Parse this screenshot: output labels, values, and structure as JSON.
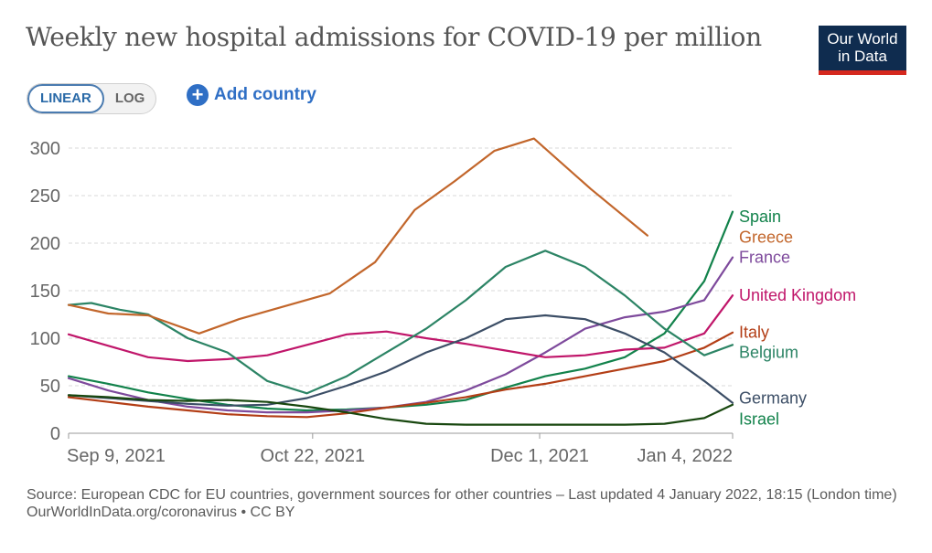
{
  "title": "Weekly new hospital admissions for COVID-19 per million",
  "logo": {
    "line1": "Our World",
    "line2": "in Data"
  },
  "controls": {
    "linear_label": "LINEAR",
    "log_label": "LOG",
    "add_country_label": "Add country"
  },
  "footer": {
    "source": "Source: European CDC for EU countries, government sources for other countries – Last updated 4 January 2022, 18:15 (London time)",
    "credit": "OurWorldInData.org/coronavirus • CC BY"
  },
  "chart_data": {
    "type": "line",
    "title": "Weekly new hospital admissions for COVID-19 per million",
    "xlabel": "",
    "ylabel": "",
    "x_tick_labels": [
      "Sep 9, 2021",
      "Oct 22, 2021",
      "Dec 1, 2021",
      "Jan 4, 2022"
    ],
    "y_ticks": [
      0,
      50,
      100,
      150,
      200,
      250,
      300
    ],
    "ylim": [
      0,
      300
    ],
    "xlim": [
      "2021-09-09",
      "2022-01-04"
    ],
    "grid": true,
    "legend_placement": "right",
    "scale": "linear",
    "series": [
      {
        "name": "Spain",
        "color": "#12824b",
        "points": [
          [
            "2021-09-09",
            60
          ],
          [
            "2021-09-16",
            52
          ],
          [
            "2021-09-23",
            43
          ],
          [
            "2021-09-30",
            36
          ],
          [
            "2021-10-07",
            30
          ],
          [
            "2021-10-14",
            26
          ],
          [
            "2021-10-21",
            24
          ],
          [
            "2021-10-28",
            25
          ],
          [
            "2021-11-04",
            27
          ],
          [
            "2021-11-11",
            30
          ],
          [
            "2021-11-18",
            35
          ],
          [
            "2021-11-25",
            48
          ],
          [
            "2021-12-02",
            60
          ],
          [
            "2021-12-09",
            68
          ],
          [
            "2021-12-16",
            80
          ],
          [
            "2021-12-23",
            105
          ],
          [
            "2021-12-30",
            160
          ],
          [
            "2022-01-04",
            233
          ]
        ]
      },
      {
        "name": "Greece",
        "color": "#c15065",
        "points": []
      },
      {
        "name": "France",
        "color": "#7e4a9c",
        "points": [
          [
            "2021-09-09",
            58
          ],
          [
            "2021-09-16",
            45
          ],
          [
            "2021-09-23",
            35
          ],
          [
            "2021-09-30",
            28
          ],
          [
            "2021-10-07",
            24
          ],
          [
            "2021-10-14",
            22
          ],
          [
            "2021-10-21",
            22
          ],
          [
            "2021-10-28",
            24
          ],
          [
            "2021-11-04",
            27
          ],
          [
            "2021-11-11",
            33
          ],
          [
            "2021-11-18",
            45
          ],
          [
            "2021-11-25",
            62
          ],
          [
            "2021-12-02",
            85
          ],
          [
            "2021-12-09",
            110
          ],
          [
            "2021-12-16",
            122
          ],
          [
            "2021-12-23",
            128
          ],
          [
            "2021-12-30",
            140
          ],
          [
            "2022-01-04",
            185
          ]
        ]
      },
      {
        "name": "United Kingdom",
        "color": "#c0166a",
        "points": [
          [
            "2021-09-09",
            104
          ],
          [
            "2021-09-16",
            92
          ],
          [
            "2021-09-23",
            80
          ],
          [
            "2021-09-30",
            76
          ],
          [
            "2021-10-07",
            78
          ],
          [
            "2021-10-14",
            82
          ],
          [
            "2021-10-21",
            93
          ],
          [
            "2021-10-28",
            104
          ],
          [
            "2021-11-04",
            107
          ],
          [
            "2021-11-11",
            100
          ],
          [
            "2021-11-18",
            94
          ],
          [
            "2021-11-25",
            87
          ],
          [
            "2021-12-02",
            80
          ],
          [
            "2021-12-09",
            82
          ],
          [
            "2021-12-16",
            88
          ],
          [
            "2021-12-23",
            90
          ],
          [
            "2021-12-30",
            105
          ],
          [
            "2022-01-04",
            145
          ]
        ]
      },
      {
        "name": "Italy",
        "color": "#b33e16",
        "points": [
          [
            "2021-09-09",
            38
          ],
          [
            "2021-09-16",
            33
          ],
          [
            "2021-09-23",
            28
          ],
          [
            "2021-09-30",
            24
          ],
          [
            "2021-10-07",
            20
          ],
          [
            "2021-10-14",
            18
          ],
          [
            "2021-10-21",
            17
          ],
          [
            "2021-10-28",
            21
          ],
          [
            "2021-11-04",
            27
          ],
          [
            "2021-11-11",
            32
          ],
          [
            "2021-11-18",
            38
          ],
          [
            "2021-11-25",
            46
          ],
          [
            "2021-12-02",
            52
          ],
          [
            "2021-12-09",
            60
          ],
          [
            "2021-12-16",
            68
          ],
          [
            "2021-12-23",
            76
          ],
          [
            "2021-12-30",
            90
          ],
          [
            "2022-01-04",
            106
          ]
        ]
      },
      {
        "name": "Belgium",
        "color": "#2c8465",
        "points": [
          [
            "2021-09-09",
            135
          ],
          [
            "2021-09-13",
            137
          ],
          [
            "2021-09-18",
            130
          ],
          [
            "2021-09-23",
            125
          ],
          [
            "2021-09-30",
            100
          ],
          [
            "2021-10-07",
            85
          ],
          [
            "2021-10-14",
            55
          ],
          [
            "2021-10-21",
            42
          ],
          [
            "2021-10-28",
            60
          ],
          [
            "2021-11-04",
            85
          ],
          [
            "2021-11-11",
            110
          ],
          [
            "2021-11-18",
            140
          ],
          [
            "2021-11-25",
            175
          ],
          [
            "2021-12-02",
            192
          ],
          [
            "2021-12-09",
            175
          ],
          [
            "2021-12-16",
            145
          ],
          [
            "2021-12-23",
            110
          ],
          [
            "2021-12-30",
            82
          ],
          [
            "2022-01-04",
            93
          ]
        ]
      },
      {
        "name": "Germany",
        "color": "#3c4e66",
        "points": [
          [
            "2021-09-09",
            40
          ],
          [
            "2021-09-16",
            37
          ],
          [
            "2021-09-23",
            34
          ],
          [
            "2021-09-30",
            31
          ],
          [
            "2021-10-07",
            29
          ],
          [
            "2021-10-14",
            30
          ],
          [
            "2021-10-21",
            37
          ],
          [
            "2021-10-28",
            50
          ],
          [
            "2021-11-04",
            65
          ],
          [
            "2021-11-11",
            85
          ],
          [
            "2021-11-18",
            100
          ],
          [
            "2021-11-25",
            120
          ],
          [
            "2021-12-02",
            124
          ],
          [
            "2021-12-09",
            120
          ],
          [
            "2021-12-16",
            105
          ],
          [
            "2021-12-23",
            85
          ],
          [
            "2021-12-30",
            55
          ],
          [
            "2022-01-04",
            32
          ]
        ]
      },
      {
        "name": "Israel",
        "color": "#18470f",
        "points": [
          [
            "2021-09-09",
            40
          ],
          [
            "2021-09-16",
            38
          ],
          [
            "2021-09-23",
            35
          ],
          [
            "2021-09-30",
            34
          ],
          [
            "2021-10-07",
            35
          ],
          [
            "2021-10-14",
            33
          ],
          [
            "2021-10-21",
            28
          ],
          [
            "2021-10-28",
            22
          ],
          [
            "2021-11-04",
            15
          ],
          [
            "2021-11-11",
            10
          ],
          [
            "2021-11-18",
            9
          ],
          [
            "2021-11-25",
            9
          ],
          [
            "2021-12-02",
            9
          ],
          [
            "2021-12-09",
            9
          ],
          [
            "2021-12-16",
            9
          ],
          [
            "2021-12-23",
            10
          ],
          [
            "2021-12-30",
            16
          ],
          [
            "2022-01-04",
            30
          ]
        ]
      },
      {
        "name": "Greece",
        "color": "#c2662b",
        "points": [
          [
            "2021-09-09",
            135
          ],
          [
            "2021-09-16",
            126
          ],
          [
            "2021-09-23",
            124
          ],
          [
            "2021-10-02",
            105
          ],
          [
            "2021-10-09",
            120
          ],
          [
            "2021-10-25",
            147
          ],
          [
            "2021-11-02",
            180
          ],
          [
            "2021-11-09",
            235
          ],
          [
            "2021-11-16",
            265
          ],
          [
            "2021-11-23",
            297
          ],
          [
            "2021-11-30",
            310
          ],
          [
            "2021-12-10",
            257
          ],
          [
            "2021-12-20",
            208
          ]
        ]
      }
    ],
    "labels": [
      {
        "text": "Spain",
        "color": "#12824b",
        "value": 229
      },
      {
        "text": "Greece",
        "color": "#c2662b",
        "value": 207
      },
      {
        "text": "France",
        "color": "#7e4a9c",
        "value": 186
      },
      {
        "text": "United Kingdom",
        "color": "#c0166a",
        "value": 146
      },
      {
        "text": "Italy",
        "color": "#b33e16",
        "value": 107
      },
      {
        "text": "Belgium",
        "color": "#2c8465",
        "value": 86
      },
      {
        "text": "Germany",
        "color": "#3c4e66",
        "value": 38
      },
      {
        "text": "Israel",
        "color": "#12824b",
        "value": 16
      }
    ]
  }
}
